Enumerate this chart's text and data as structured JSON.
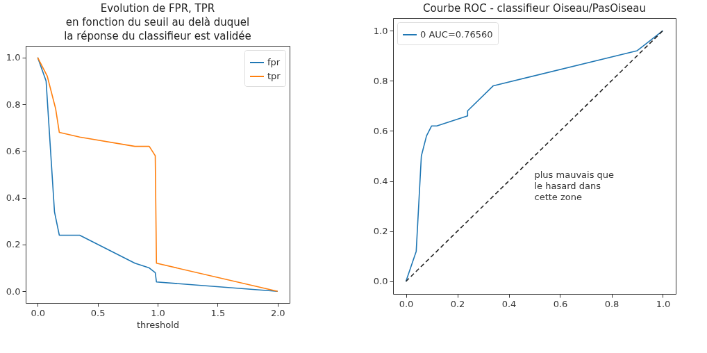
{
  "chart_data": [
    {
      "type": "line",
      "title": "Evolution de FPR, TPR\nen fonction du seuil au delà duquel\nla réponse du classifieur est validée",
      "xlabel": "threshold",
      "series": [
        {
          "name": "fpr",
          "color": "#1f77b4",
          "x": [
            0,
            0.07,
            0.14,
            0.18,
            0.35,
            0.81,
            0.93,
            0.98,
            0.99,
            2.0
          ],
          "values": [
            1.0,
            0.9,
            0.34,
            0.24,
            0.24,
            0.12,
            0.1,
            0.08,
            0.04,
            0.0
          ]
        },
        {
          "name": "tpr",
          "color": "#ff7f0e",
          "x": [
            0,
            0.08,
            0.15,
            0.18,
            0.35,
            0.81,
            0.93,
            0.98,
            0.99,
            2.0
          ],
          "values": [
            1.0,
            0.92,
            0.78,
            0.68,
            0.66,
            0.62,
            0.62,
            0.58,
            0.12,
            0.0
          ]
        }
      ],
      "xlim": [
        -0.1,
        2.1
      ],
      "ylim": [
        -0.05,
        1.05
      ],
      "xticks": [
        {
          "value": 0,
          "label": "0.0"
        },
        {
          "value": 0.5,
          "label": "0.5"
        },
        {
          "value": 1,
          "label": "1.0"
        },
        {
          "value": 1.5,
          "label": "1.5"
        },
        {
          "value": 2,
          "label": "2.0"
        }
      ],
      "yticks": [
        {
          "value": 0,
          "label": "0.0"
        },
        {
          "value": 0.2,
          "label": "0.2"
        },
        {
          "value": 0.4,
          "label": "0.4"
        },
        {
          "value": 0.6,
          "label": "0.6"
        },
        {
          "value": 0.8,
          "label": "0.8"
        },
        {
          "value": 1,
          "label": "1.0"
        }
      ],
      "grid": false,
      "legend": "top right"
    },
    {
      "type": "line",
      "title": "Courbe ROC - classifieur Oiseau/PasOiseau",
      "series": [
        {
          "name": "0 AUC=0.76560",
          "color": "#1f77b4",
          "x": [
            0,
            0.04,
            0.06,
            0.08,
            0.1,
            0.12,
            0.24,
            0.24,
            0.34,
            0.9,
            1.0
          ],
          "values": [
            0,
            0.12,
            0.5,
            0.58,
            0.62,
            0.62,
            0.66,
            0.68,
            0.78,
            0.92,
            1.0
          ]
        },
        {
          "color": "#222222",
          "line_style": "dashed",
          "x": [
            0,
            1
          ],
          "values": [
            0,
            1
          ]
        }
      ],
      "annotations": [
        "plus mauvais que\nle hasard dans\ncette zone"
      ],
      "xlim": [
        -0.05,
        1.05
      ],
      "ylim": [
        -0.05,
        1.05
      ],
      "xticks": [
        {
          "value": 0,
          "label": "0.0"
        },
        {
          "value": 0.2,
          "label": "0.2"
        },
        {
          "value": 0.4,
          "label": "0.4"
        },
        {
          "value": 0.6,
          "label": "0.6"
        },
        {
          "value": 0.8,
          "label": "0.8"
        },
        {
          "value": 1,
          "label": "1.0"
        }
      ],
      "yticks": [
        {
          "value": 0,
          "label": "0.0"
        },
        {
          "value": 0.2,
          "label": "0.2"
        },
        {
          "value": 0.4,
          "label": "0.4"
        },
        {
          "value": 0.6,
          "label": "0.6"
        },
        {
          "value": 0.8,
          "label": "0.8"
        },
        {
          "value": 1,
          "label": "1.0"
        }
      ],
      "grid": false,
      "legend": "top left"
    }
  ]
}
